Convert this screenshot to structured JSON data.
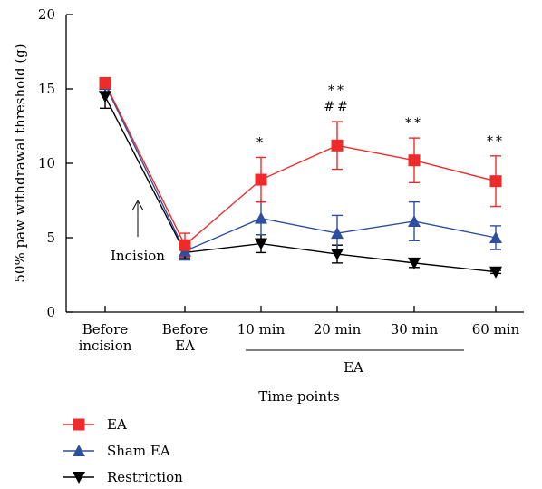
{
  "chart_data": {
    "type": "line",
    "xlabel": "Time points",
    "ylabel": "50% paw withdrawal threshold (g)",
    "ylim": [
      0,
      20
    ],
    "yticks": [
      0,
      5,
      10,
      15,
      20
    ],
    "categories": [
      "Before\nincision",
      "Before\nEA",
      "10 min",
      "20 min",
      "30 min",
      "60 min"
    ],
    "group_label": "EA",
    "annotation": "Incision",
    "series": [
      {
        "name": "EA",
        "color": "#ee2a2a",
        "marker": "square",
        "values": [
          15.4,
          4.5,
          8.9,
          11.2,
          10.2,
          8.8
        ],
        "errors": [
          0.3,
          0.8,
          1.5,
          1.6,
          1.5,
          1.7
        ]
      },
      {
        "name": "Sham EA",
        "color": "#2e4fa0",
        "marker": "triangle-up",
        "values": [
          15.3,
          4.1,
          6.3,
          5.3,
          6.1,
          5.0
        ],
        "errors": [
          0.3,
          0.6,
          1.1,
          1.2,
          1.3,
          0.8
        ]
      },
      {
        "name": "Restriction",
        "color": "#000000",
        "marker": "triangle-down",
        "values": [
          14.5,
          4.0,
          4.6,
          3.9,
          3.3,
          2.7
        ],
        "errors": [
          0.8,
          0.4,
          0.6,
          0.6,
          0.3,
          0.1
        ]
      }
    ],
    "significance": [
      {
        "category": "10 min",
        "lines": [
          "*"
        ]
      },
      {
        "category": "20 min",
        "lines": [
          "**",
          "##"
        ]
      },
      {
        "category": "30 min",
        "lines": [
          "**"
        ]
      },
      {
        "category": "60 min",
        "lines": [
          "**"
        ]
      }
    ],
    "legend": "bottom-left"
  }
}
